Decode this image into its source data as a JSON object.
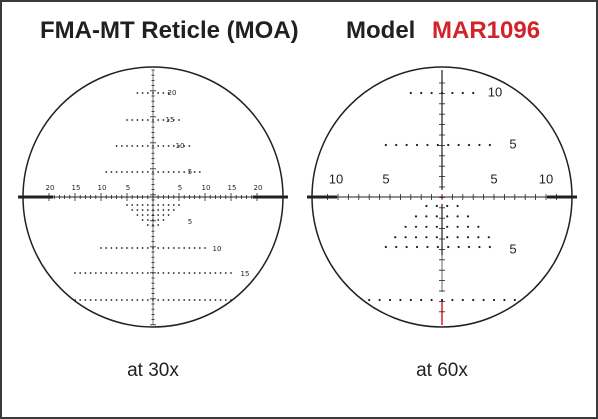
{
  "header": {
    "title": "FMA-MT Reticle (MOA)",
    "model_prefix": "Model",
    "model": "MAR1096"
  },
  "reticles": [
    {
      "caption": "at 30x",
      "labels": {
        "top": [
          "20",
          "15",
          "10",
          "5"
        ],
        "left": [
          "20",
          "15",
          "10",
          "5"
        ],
        "right": [
          "5",
          "10",
          "15",
          "20"
        ],
        "bottom": [
          "5",
          "10",
          "15"
        ]
      }
    },
    {
      "caption": "at 60x",
      "labels": {
        "top": [
          "10",
          "5"
        ],
        "left": [
          "10",
          "5"
        ],
        "right": [
          "5",
          "10"
        ],
        "bottom": [
          "5"
        ]
      }
    }
  ]
}
